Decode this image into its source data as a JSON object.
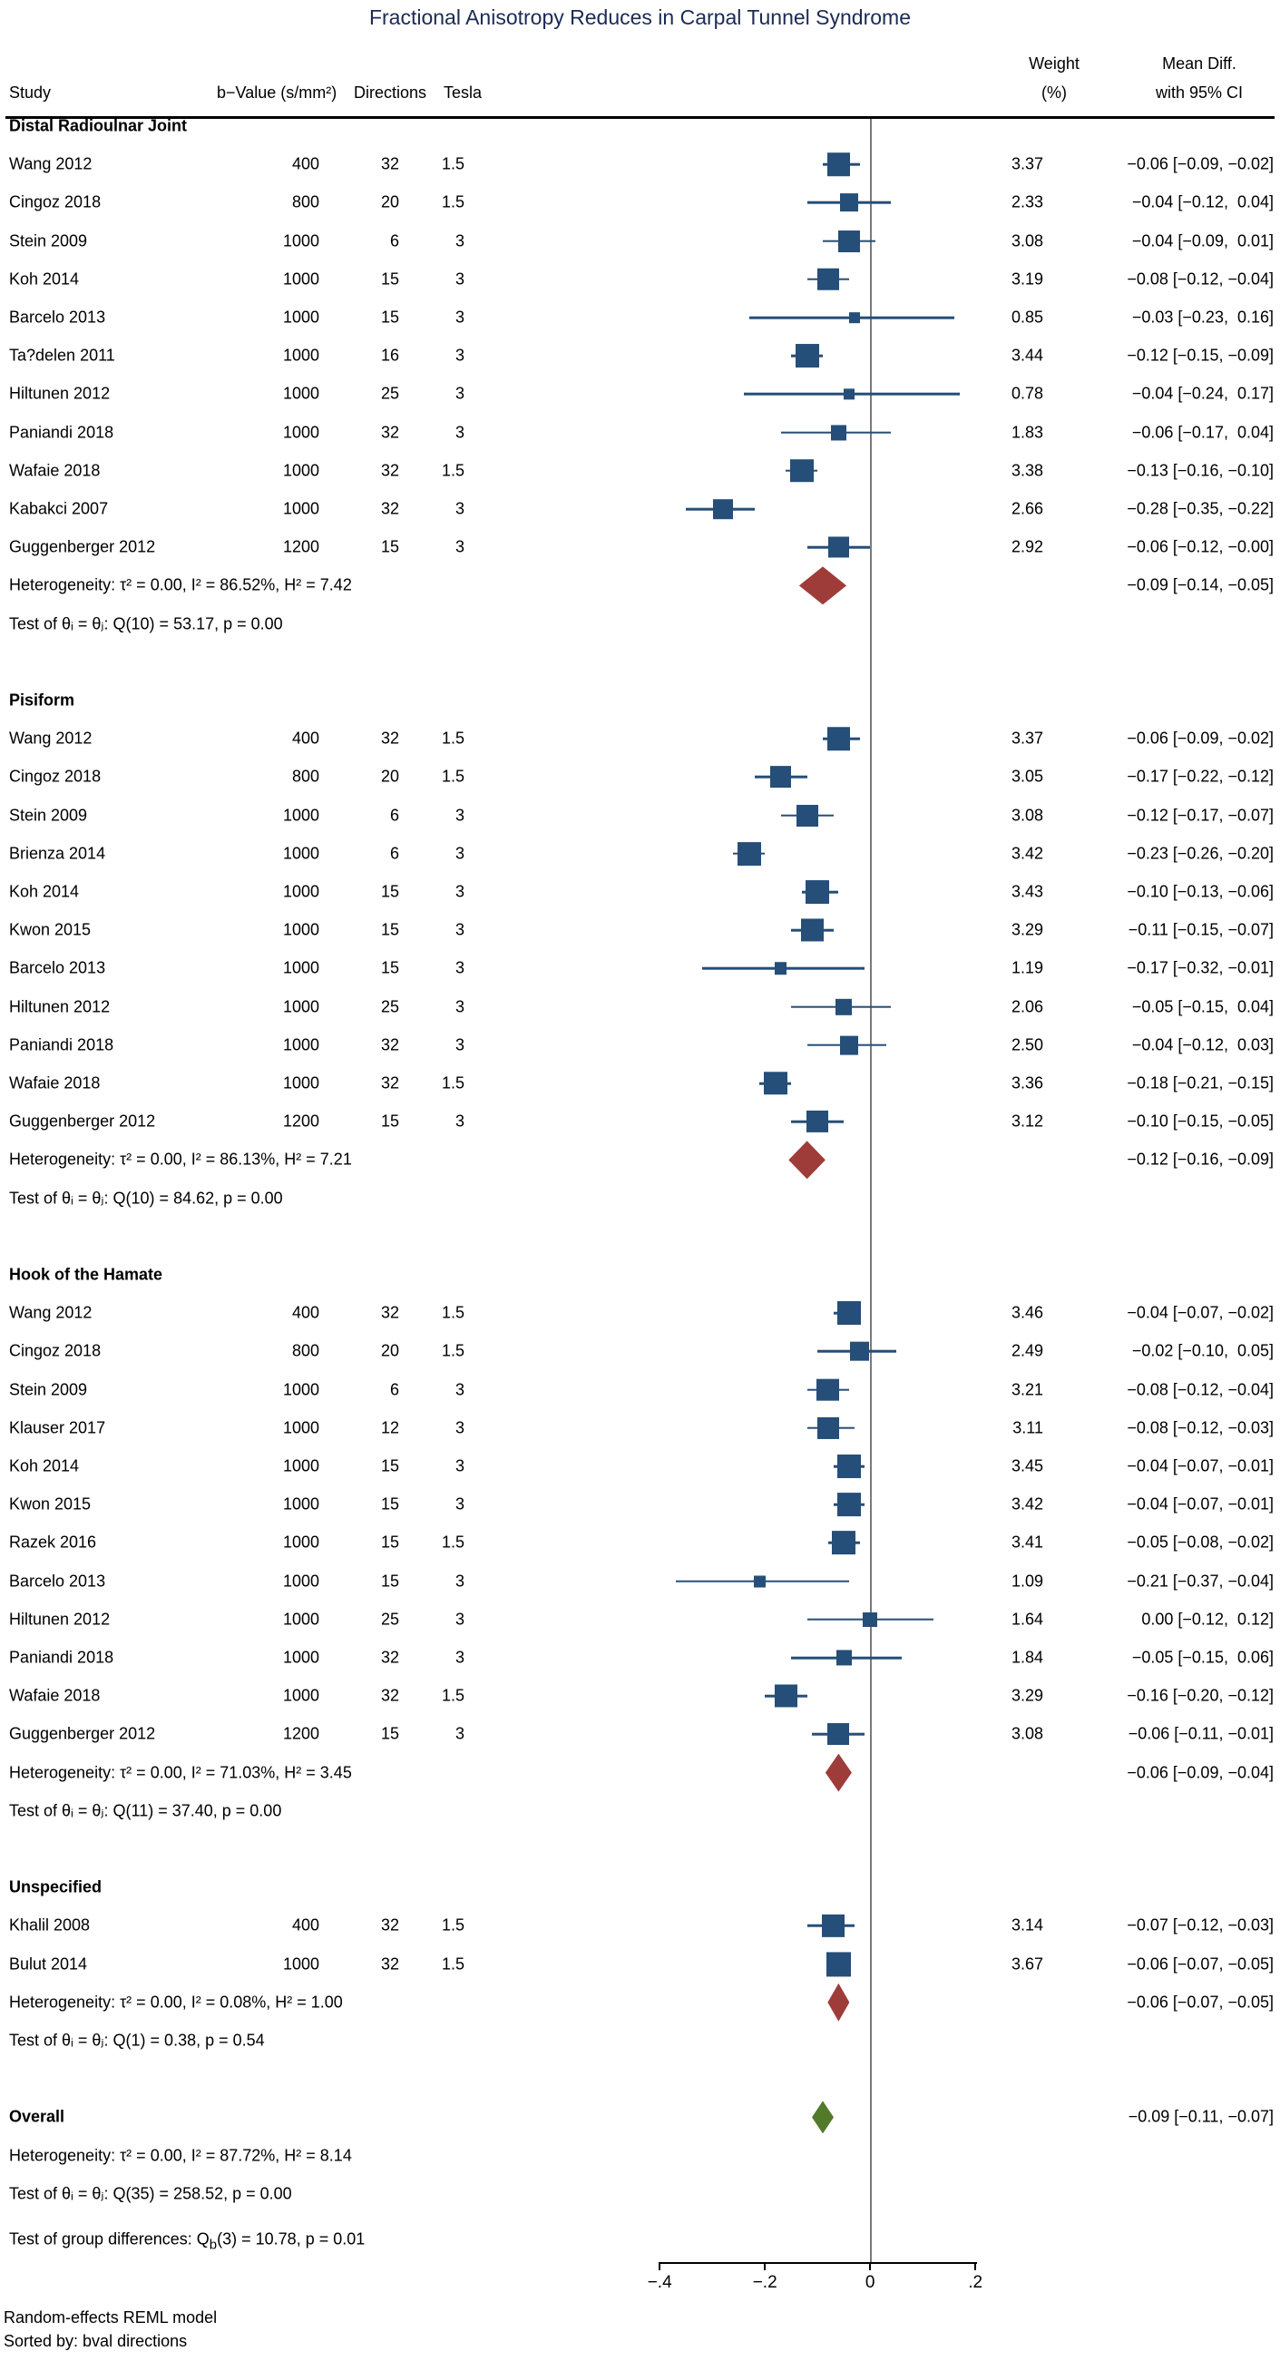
{
  "title": "Fractional Anisotropy Reduces in Carpal Tunnel Syndrome",
  "header": {
    "study": "Study",
    "bval": "b−Value (s/mm²)",
    "directions": "Directions",
    "tesla": "Tesla",
    "weight_line1": "Weight",
    "weight_line2": "(%)",
    "ci_line1": "Mean Diff.",
    "ci_line2": "with 95% CI"
  },
  "footer": {
    "line1": "Random-effects REML model",
    "line2": "Sorted by: bval directions"
  },
  "colors": {
    "navy": "#254E78",
    "maroon": "#9E3C39",
    "green": "#527A2B",
    "title_navy": "#1B2B54",
    "zero_line": "#7a7a7a"
  },
  "chart_data": {
    "type": "scatter",
    "subtype": "forest_plot",
    "effect_label": "Mean Diff. with 95% CI",
    "x_axis": {
      "ticks": [
        {
          "label": "−.4",
          "value": -0.4
        },
        {
          "label": "−.2",
          "value": -0.2
        },
        {
          "label": "0",
          "value": 0
        },
        {
          "label": ".2",
          "value": 0.2
        }
      ],
      "visible_range": [
        -0.4,
        0.2
      ],
      "zero_reference_line": true
    },
    "groups": [
      {
        "name": "Distal Radioulnar Joint",
        "studies": [
          {
            "study": "Wang 2012",
            "bval": "400",
            "directions": "32",
            "tesla": "1.5",
            "weight": "3.37",
            "est": -0.06,
            "lo": -0.09,
            "hi": -0.02,
            "ci": "−0.06 [−0.09, −0.02]"
          },
          {
            "study": "Cingoz 2018",
            "bval": "800",
            "directions": "20",
            "tesla": "1.5",
            "weight": "2.33",
            "est": -0.04,
            "lo": -0.12,
            "hi": 0.04,
            "ci": "−0.04 [−0.12,  0.04]"
          },
          {
            "study": "Stein 2009",
            "bval": "1000",
            "directions": "6",
            "tesla": "3",
            "weight": "3.08",
            "est": -0.04,
            "lo": -0.09,
            "hi": 0.01,
            "ci": "−0.04 [−0.09,  0.01]"
          },
          {
            "study": "Koh 2014",
            "bval": "1000",
            "directions": "15",
            "tesla": "3",
            "weight": "3.19",
            "est": -0.08,
            "lo": -0.12,
            "hi": -0.04,
            "ci": "−0.08 [−0.12, −0.04]"
          },
          {
            "study": "Barcelo 2013",
            "bval": "1000",
            "directions": "15",
            "tesla": "3",
            "weight": "0.85",
            "est": -0.03,
            "lo": -0.23,
            "hi": 0.16,
            "ci": "−0.03 [−0.23,  0.16]"
          },
          {
            "study": "Ta?delen 2011",
            "bval": "1000",
            "directions": "16",
            "tesla": "3",
            "weight": "3.44",
            "est": -0.12,
            "lo": -0.15,
            "hi": -0.09,
            "ci": "−0.12 [−0.15, −0.09]"
          },
          {
            "study": "Hiltunen 2012",
            "bval": "1000",
            "directions": "25",
            "tesla": "3",
            "weight": "0.78",
            "est": -0.04,
            "lo": -0.24,
            "hi": 0.17,
            "ci": "−0.04 [−0.24,  0.17]"
          },
          {
            "study": "Paniandi 2018",
            "bval": "1000",
            "directions": "32",
            "tesla": "3",
            "weight": "1.83",
            "est": -0.06,
            "lo": -0.17,
            "hi": 0.04,
            "ci": "−0.06 [−0.17,  0.04]"
          },
          {
            "study": "Wafaie 2018",
            "bval": "1000",
            "directions": "32",
            "tesla": "1.5",
            "weight": "3.38",
            "est": -0.13,
            "lo": -0.16,
            "hi": -0.1,
            "ci": "−0.13 [−0.16, −0.10]"
          },
          {
            "study": "Kabakci 2007",
            "bval": "1000",
            "directions": "32",
            "tesla": "3",
            "weight": "2.66",
            "est": -0.28,
            "lo": -0.35,
            "hi": -0.22,
            "ci": "−0.28 [−0.35, −0.22]"
          },
          {
            "study": "Guggenberger 2012",
            "bval": "1200",
            "directions": "15",
            "tesla": "3",
            "weight": "2.92",
            "est": -0.06,
            "lo": -0.12,
            "hi": 0.0,
            "ci": "−0.06 [−0.12, −0.00]"
          }
        ],
        "heterogeneity": "Heterogeneity: τ² = 0.00, I² = 86.52%, H² = 7.42",
        "test": "Test of θᵢ = θⱼ: Q(10) = 53.17, p = 0.00",
        "summary": {
          "est": -0.09,
          "lo": -0.14,
          "hi": -0.05,
          "ci": "−0.09 [−0.14, −0.05]"
        }
      },
      {
        "name": "Pisiform",
        "studies": [
          {
            "study": "Wang 2012",
            "bval": "400",
            "directions": "32",
            "tesla": "1.5",
            "weight": "3.37",
            "est": -0.06,
            "lo": -0.09,
            "hi": -0.02,
            "ci": "−0.06 [−0.09, −0.02]"
          },
          {
            "study": "Cingoz 2018",
            "bval": "800",
            "directions": "20",
            "tesla": "1.5",
            "weight": "3.05",
            "est": -0.17,
            "lo": -0.22,
            "hi": -0.12,
            "ci": "−0.17 [−0.22, −0.12]"
          },
          {
            "study": "Stein 2009",
            "bval": "1000",
            "directions": "6",
            "tesla": "3",
            "weight": "3.08",
            "est": -0.12,
            "lo": -0.17,
            "hi": -0.07,
            "ci": "−0.12 [−0.17, −0.07]"
          },
          {
            "study": "Brienza 2014",
            "bval": "1000",
            "directions": "6",
            "tesla": "3",
            "weight": "3.42",
            "est": -0.23,
            "lo": -0.26,
            "hi": -0.2,
            "ci": "−0.23 [−0.26, −0.20]"
          },
          {
            "study": "Koh 2014",
            "bval": "1000",
            "directions": "15",
            "tesla": "3",
            "weight": "3.43",
            "est": -0.1,
            "lo": -0.13,
            "hi": -0.06,
            "ci": "−0.10 [−0.13, −0.06]"
          },
          {
            "study": "Kwon 2015",
            "bval": "1000",
            "directions": "15",
            "tesla": "3",
            "weight": "3.29",
            "est": -0.11,
            "lo": -0.15,
            "hi": -0.07,
            "ci": "−0.11 [−0.15, −0.07]"
          },
          {
            "study": "Barcelo 2013",
            "bval": "1000",
            "directions": "15",
            "tesla": "3",
            "weight": "1.19",
            "est": -0.17,
            "lo": -0.32,
            "hi": -0.01,
            "ci": "−0.17 [−0.32, −0.01]"
          },
          {
            "study": "Hiltunen 2012",
            "bval": "1000",
            "directions": "25",
            "tesla": "3",
            "weight": "2.06",
            "est": -0.05,
            "lo": -0.15,
            "hi": 0.04,
            "ci": "−0.05 [−0.15,  0.04]"
          },
          {
            "study": "Paniandi 2018",
            "bval": "1000",
            "directions": "32",
            "tesla": "3",
            "weight": "2.50",
            "est": -0.04,
            "lo": -0.12,
            "hi": 0.03,
            "ci": "−0.04 [−0.12,  0.03]"
          },
          {
            "study": "Wafaie 2018",
            "bval": "1000",
            "directions": "32",
            "tesla": "1.5",
            "weight": "3.36",
            "est": -0.18,
            "lo": -0.21,
            "hi": -0.15,
            "ci": "−0.18 [−0.21, −0.15]"
          },
          {
            "study": "Guggenberger 2012",
            "bval": "1200",
            "directions": "15",
            "tesla": "3",
            "weight": "3.12",
            "est": -0.1,
            "lo": -0.15,
            "hi": -0.05,
            "ci": "−0.10 [−0.15, −0.05]"
          }
        ],
        "heterogeneity": "Heterogeneity: τ² = 0.00, I² = 86.13%, H² = 7.21",
        "test": "Test of θᵢ = θⱼ: Q(10) = 84.62, p = 0.00",
        "summary": {
          "est": -0.12,
          "lo": -0.16,
          "hi": -0.09,
          "ci": "−0.12 [−0.16, −0.09]"
        }
      },
      {
        "name": "Hook of the Hamate",
        "studies": [
          {
            "study": "Wang 2012",
            "bval": "400",
            "directions": "32",
            "tesla": "1.5",
            "weight": "3.46",
            "est": -0.04,
            "lo": -0.07,
            "hi": -0.02,
            "ci": "−0.04 [−0.07, −0.02]"
          },
          {
            "study": "Cingoz 2018",
            "bval": "800",
            "directions": "20",
            "tesla": "1.5",
            "weight": "2.49",
            "est": -0.02,
            "lo": -0.1,
            "hi": 0.05,
            "ci": "−0.02 [−0.10,  0.05]"
          },
          {
            "study": "Stein 2009",
            "bval": "1000",
            "directions": "6",
            "tesla": "3",
            "weight": "3.21",
            "est": -0.08,
            "lo": -0.12,
            "hi": -0.04,
            "ci": "−0.08 [−0.12, −0.04]"
          },
          {
            "study": "Klauser 2017",
            "bval": "1000",
            "directions": "12",
            "tesla": "3",
            "weight": "3.11",
            "est": -0.08,
            "lo": -0.12,
            "hi": -0.03,
            "ci": "−0.08 [−0.12, −0.03]"
          },
          {
            "study": "Koh 2014",
            "bval": "1000",
            "directions": "15",
            "tesla": "3",
            "weight": "3.45",
            "est": -0.04,
            "lo": -0.07,
            "hi": -0.01,
            "ci": "−0.04 [−0.07, −0.01]"
          },
          {
            "study": "Kwon 2015",
            "bval": "1000",
            "directions": "15",
            "tesla": "3",
            "weight": "3.42",
            "est": -0.04,
            "lo": -0.07,
            "hi": -0.01,
            "ci": "−0.04 [−0.07, −0.01]"
          },
          {
            "study": "Razek 2016",
            "bval": "1000",
            "directions": "15",
            "tesla": "1.5",
            "weight": "3.41",
            "est": -0.05,
            "lo": -0.08,
            "hi": -0.02,
            "ci": "−0.05 [−0.08, −0.02]"
          },
          {
            "study": "Barcelo 2013",
            "bval": "1000",
            "directions": "15",
            "tesla": "3",
            "weight": "1.09",
            "est": -0.21,
            "lo": -0.37,
            "hi": -0.04,
            "ci": "−0.21 [−0.37, −0.04]"
          },
          {
            "study": "Hiltunen 2012",
            "bval": "1000",
            "directions": "25",
            "tesla": "3",
            "weight": "1.64",
            "est": 0.0,
            "lo": -0.12,
            "hi": 0.12,
            "ci": "0.00 [−0.12,  0.12]"
          },
          {
            "study": "Paniandi 2018",
            "bval": "1000",
            "directions": "32",
            "tesla": "3",
            "weight": "1.84",
            "est": -0.05,
            "lo": -0.15,
            "hi": 0.06,
            "ci": "−0.05 [−0.15,  0.06]"
          },
          {
            "study": "Wafaie 2018",
            "bval": "1000",
            "directions": "32",
            "tesla": "1.5",
            "weight": "3.29",
            "est": -0.16,
            "lo": -0.2,
            "hi": -0.12,
            "ci": "−0.16 [−0.20, −0.12]"
          },
          {
            "study": "Guggenberger 2012",
            "bval": "1200",
            "directions": "15",
            "tesla": "3",
            "weight": "3.08",
            "est": -0.06,
            "lo": -0.11,
            "hi": -0.01,
            "ci": "−0.06 [−0.11, −0.01]"
          }
        ],
        "heterogeneity": "Heterogeneity: τ² = 0.00, I² = 71.03%, H² = 3.45",
        "test": "Test of θᵢ = θⱼ: Q(11) = 37.40, p = 0.00",
        "summary": {
          "est": -0.06,
          "lo": -0.09,
          "hi": -0.04,
          "ci": "−0.06 [−0.09, −0.04]"
        }
      },
      {
        "name": "Unspecified",
        "studies": [
          {
            "study": "Khalil 2008",
            "bval": "400",
            "directions": "32",
            "tesla": "1.5",
            "weight": "3.14",
            "est": -0.07,
            "lo": -0.12,
            "hi": -0.03,
            "ci": "−0.07 [−0.12, −0.03]"
          },
          {
            "study": "Bulut 2014",
            "bval": "1000",
            "directions": "32",
            "tesla": "1.5",
            "weight": "3.67",
            "est": -0.06,
            "lo": -0.07,
            "hi": -0.05,
            "ci": "−0.06 [−0.07, −0.05]"
          }
        ],
        "heterogeneity": "Heterogeneity: τ² = 0.00, I² = 0.08%, H² = 1.00",
        "test": "Test of θᵢ = θⱼ: Q(1) = 0.38, p = 0.54",
        "summary": {
          "est": -0.06,
          "lo": -0.07,
          "hi": -0.05,
          "ci": "−0.06 [−0.07, −0.05]"
        }
      }
    ],
    "overall": {
      "label": "Overall",
      "heterogeneity": "Heterogeneity: τ² = 0.00, I² = 87.72%, H² = 8.14",
      "test": "Test of θᵢ = θⱼ: Q(35) = 258.52, p = 0.00",
      "summary": {
        "est": -0.09,
        "lo": -0.11,
        "hi": -0.07,
        "ci": "−0.09 [−0.11, −0.07]"
      }
    },
    "group_difference": {
      "prefix": "Test of group differences: Q",
      "sub": "b",
      "suffix": "(3) = 10.78, p = 0.01"
    }
  }
}
